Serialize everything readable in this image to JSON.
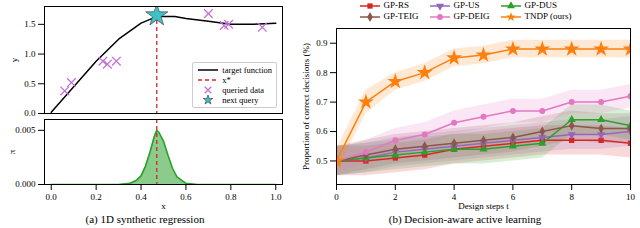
{
  "chart_data": [
    {
      "type": "line",
      "xlim": [
        -0.03,
        1.03
      ],
      "ylim": [
        0,
        1.8
      ],
      "yticks": [
        {
          "value": 0,
          "label": "0.0"
        },
        {
          "value": 0.5,
          "label": "0.5"
        },
        {
          "value": 1,
          "label": "1.0"
        },
        {
          "value": 1.5,
          "label": "1.5"
        }
      ],
      "y_label": "y",
      "tick_labels": "y",
      "grid": false,
      "legend": "lower right",
      "series": [
        {
          "name": "target function",
          "type": "line",
          "color": "#000000",
          "line_style": "solid",
          "x": [
            0,
            0.1,
            0.2,
            0.3,
            0.4,
            0.47,
            0.55,
            0.6,
            0.7,
            0.8,
            0.9,
            1.0
          ],
          "values": [
            0.02,
            0.45,
            0.88,
            1.25,
            1.52,
            1.63,
            1.63,
            1.6,
            1.55,
            1.5,
            1.5,
            1.52
          ]
        },
        {
          "name": "x*",
          "type": "vline",
          "color": "#d62728",
          "line_style": "dashed",
          "x": [
            0.47
          ]
        },
        {
          "name": "queried data",
          "type": "scatter",
          "marker": "x",
          "color": "#c46fd6",
          "x": [
            0.06,
            0.09,
            0.23,
            0.25,
            0.29,
            0.7,
            0.77,
            0.79,
            0.94
          ],
          "values": [
            0.38,
            0.52,
            0.88,
            0.83,
            0.88,
            1.68,
            1.48,
            1.5,
            1.45
          ]
        },
        {
          "name": "next query",
          "type": "scatter",
          "marker": "star",
          "color": "#3fc1c9",
          "x": [
            0.47
          ],
          "values": [
            1.65
          ]
        }
      ]
    },
    {
      "type": "area",
      "caption": "(a) 1D synthetic regression",
      "xlim": [
        -0.03,
        1.03
      ],
      "xticks": [
        {
          "value": 0,
          "label": "0.0"
        },
        {
          "value": 0.2,
          "label": "0.2"
        },
        {
          "value": 0.4,
          "label": "0.4"
        },
        {
          "value": 0.6,
          "label": "0.6"
        },
        {
          "value": 0.8,
          "label": "0.8"
        },
        {
          "value": 1,
          "label": "1.0"
        }
      ],
      "ylim": [
        0,
        0.006
      ],
      "yticks": [
        {
          "value": 0,
          "label": "0.000"
        },
        {
          "value": 0.005,
          "label": "0.005"
        }
      ],
      "x_label": "x",
      "y_label": "π",
      "grid": false,
      "series": [
        {
          "type": "area",
          "color": "#2ca02c",
          "x": [
            0,
            0.3,
            0.35,
            0.38,
            0.4,
            0.42,
            0.44,
            0.46,
            0.47,
            0.48,
            0.5,
            0.52,
            0.54,
            0.56,
            0.6,
            0.65,
            1.0
          ],
          "values": [
            0,
            0,
            0.0001,
            0.0004,
            0.0008,
            0.0017,
            0.003,
            0.0045,
            0.005,
            0.0048,
            0.004,
            0.0027,
            0.0015,
            0.0007,
            0.0001,
            0,
            0
          ]
        },
        {
          "type": "vline",
          "color": "#d62728",
          "line_style": "dashed",
          "x": [
            0.47
          ]
        }
      ]
    },
    {
      "type": "line",
      "caption": "(b) Decision-aware active learning",
      "x_label": "Design steps t",
      "y_label": "Proportion of correct decisions (%)",
      "xlim": [
        0,
        10
      ],
      "xticks": [
        0,
        2,
        4,
        6,
        8,
        10
      ],
      "ylim": [
        0.42,
        0.95
      ],
      "yticks": [
        0.5,
        0.6,
        0.7,
        0.8,
        0.9
      ],
      "grid": false,
      "legend": "top",
      "x": [
        0,
        1,
        2,
        3,
        4,
        5,
        6,
        7,
        8,
        9,
        10
      ],
      "series": [
        {
          "name": "GP-RS",
          "color": "#d62728",
          "marker": "square",
          "values": [
            0.5,
            0.5,
            0.51,
            0.52,
            0.54,
            0.55,
            0.56,
            0.57,
            0.57,
            0.57,
            0.56
          ],
          "lower": [
            0.45,
            0.45,
            0.46,
            0.47,
            0.49,
            0.5,
            0.51,
            0.52,
            0.52,
            0.52,
            0.51
          ],
          "upper": [
            0.55,
            0.55,
            0.56,
            0.57,
            0.59,
            0.6,
            0.61,
            0.62,
            0.62,
            0.62,
            0.61
          ]
        },
        {
          "name": "GP-US",
          "color": "#9467bd",
          "marker": "triangle_down",
          "values": [
            0.5,
            0.51,
            0.53,
            0.54,
            0.55,
            0.56,
            0.57,
            0.58,
            0.59,
            0.59,
            0.6
          ],
          "lower": [
            0.45,
            0.46,
            0.48,
            0.49,
            0.5,
            0.51,
            0.52,
            0.53,
            0.54,
            0.54,
            0.55
          ],
          "upper": [
            0.55,
            0.56,
            0.58,
            0.59,
            0.6,
            0.61,
            0.62,
            0.63,
            0.64,
            0.64,
            0.65
          ]
        },
        {
          "name": "GP-DUS",
          "color": "#2ca02c",
          "marker": "triangle",
          "values": [
            0.5,
            0.51,
            0.52,
            0.53,
            0.54,
            0.54,
            0.55,
            0.56,
            0.64,
            0.64,
            0.62
          ],
          "lower": [
            0.45,
            0.46,
            0.47,
            0.48,
            0.49,
            0.49,
            0.5,
            0.51,
            0.59,
            0.59,
            0.57
          ],
          "upper": [
            0.55,
            0.56,
            0.57,
            0.58,
            0.59,
            0.59,
            0.6,
            0.61,
            0.69,
            0.69,
            0.67
          ]
        },
        {
          "name": "GP-TEIG",
          "color": "#8c564b",
          "marker": "diamond",
          "values": [
            0.5,
            0.52,
            0.54,
            0.55,
            0.56,
            0.57,
            0.58,
            0.6,
            0.62,
            0.61,
            0.61
          ],
          "lower": [
            0.45,
            0.47,
            0.49,
            0.5,
            0.51,
            0.52,
            0.53,
            0.55,
            0.57,
            0.56,
            0.56
          ],
          "upper": [
            0.55,
            0.57,
            0.59,
            0.6,
            0.61,
            0.62,
            0.63,
            0.65,
            0.67,
            0.66,
            0.66
          ]
        },
        {
          "name": "GP-DEIG",
          "color": "#e377c2",
          "marker": "circle",
          "values": [
            0.5,
            0.53,
            0.57,
            0.59,
            0.63,
            0.65,
            0.67,
            0.67,
            0.7,
            0.7,
            0.72
          ],
          "lower": [
            0.46,
            0.49,
            0.53,
            0.55,
            0.59,
            0.61,
            0.63,
            0.63,
            0.66,
            0.66,
            0.68
          ],
          "upper": [
            0.54,
            0.57,
            0.61,
            0.63,
            0.67,
            0.69,
            0.71,
            0.71,
            0.74,
            0.74,
            0.76
          ]
        },
        {
          "name": "TNDP (ours)",
          "color": "#ff7f0e",
          "marker": "star",
          "values": [
            0.5,
            0.7,
            0.77,
            0.8,
            0.85,
            0.86,
            0.88,
            0.88,
            0.88,
            0.88,
            0.88
          ],
          "lower": [
            0.46,
            0.66,
            0.74,
            0.77,
            0.82,
            0.83,
            0.85,
            0.85,
            0.85,
            0.85,
            0.85
          ],
          "upper": [
            0.54,
            0.74,
            0.8,
            0.83,
            0.88,
            0.89,
            0.91,
            0.91,
            0.91,
            0.91,
            0.91
          ]
        }
      ]
    }
  ]
}
